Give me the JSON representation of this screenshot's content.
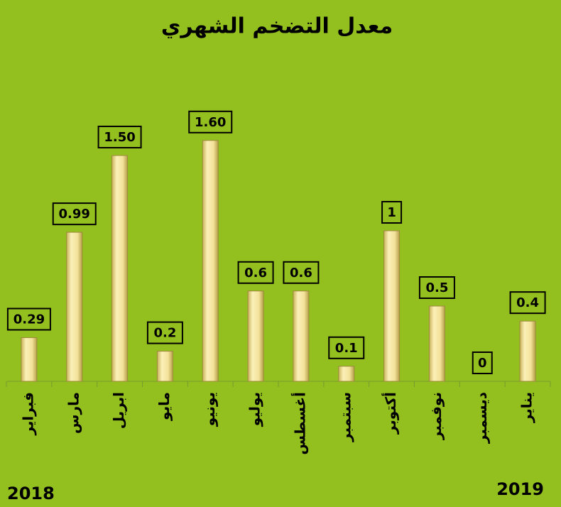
{
  "chart_data": {
    "type": "bar",
    "title": "معدل التضخم الشهري",
    "categories": [
      "فبراير",
      "مارس",
      "ابريل",
      "مايو",
      "يونيو",
      "يوليو",
      "أغسطس",
      "سبتمبر",
      "أكتوبر",
      "نوفمبر",
      "ديسمبر",
      "يناير"
    ],
    "values": [
      0.29,
      0.99,
      1.5,
      0.2,
      1.6,
      0.6,
      0.6,
      0.1,
      1,
      0.5,
      0,
      0.4
    ],
    "value_labels": [
      "0.29",
      "0.99",
      "1.50",
      "0.2",
      "1.60",
      "0.6",
      "0.6",
      "0.1",
      "1",
      "0.5",
      "0",
      "0.4"
    ],
    "color": "#f3e29a",
    "ylim": [
      0,
      2
    ],
    "annotations": [
      "2018",
      "2019"
    ]
  }
}
